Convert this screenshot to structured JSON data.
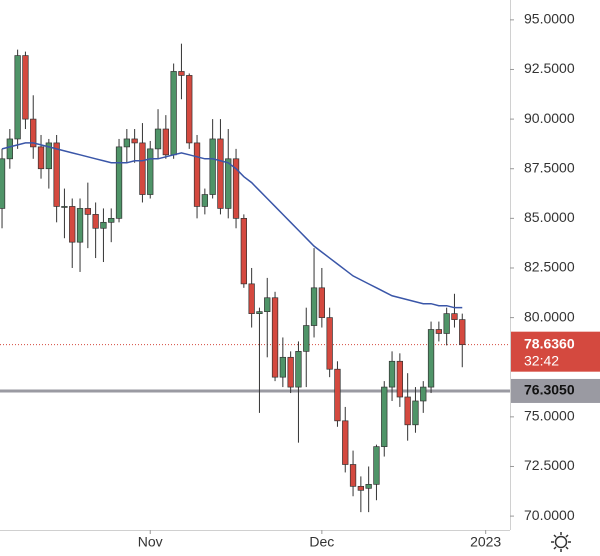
{
  "chart_data": {
    "type": "candlestick",
    "up_color": "#4f9468",
    "down_color": "#d4493f",
    "ylim": [
      69.3,
      96.0
    ],
    "yticks": [
      {
        "value": 70,
        "label": "70.0000"
      },
      {
        "value": 72.5,
        "label": "72.5000"
      },
      {
        "value": 75,
        "label": "75.0000"
      },
      {
        "value": 80,
        "label": "80.0000"
      },
      {
        "value": 82.5,
        "label": "82.5000"
      },
      {
        "value": 85,
        "label": "85.0000"
      },
      {
        "value": 87.5,
        "label": "87.5000"
      },
      {
        "value": 90,
        "label": "90.0000"
      },
      {
        "value": 92.5,
        "label": "92.5000"
      },
      {
        "value": 95,
        "label": "95.0000"
      }
    ],
    "xlim": [
      -0.26,
      65.12
    ],
    "xticks": [
      {
        "value": 19,
        "label": "Nov"
      },
      {
        "value": 41,
        "label": "Dec"
      },
      {
        "value": 62,
        "label": "2023"
      }
    ],
    "open": [
      85.5,
      88.0,
      89.0,
      93.2,
      90.0,
      88.6,
      87.5,
      88.8,
      85.6,
      85.6,
      83.8,
      85.5,
      85.2,
      84.5,
      84.8,
      85.0,
      88.6,
      89.0,
      88.8,
      86.2,
      88.5,
      89.5,
      88.2,
      92.4,
      92.2,
      88.8,
      85.6,
      86.2,
      89.0,
      85.5,
      88.0,
      85.0,
      81.7,
      80.2,
      80.3,
      81.0,
      77.0,
      78.0,
      76.5,
      78.3,
      79.6,
      81.5,
      80.0,
      77.4,
      74.8,
      72.6,
      71.5,
      71.4,
      71.6,
      73.5,
      76.5,
      77.8,
      76.0,
      74.6,
      75.8,
      76.5,
      79.4,
      79.2,
      80.2,
      79.9
    ],
    "high": [
      88.5,
      89.5,
      93.5,
      93.4,
      91.2,
      89.2,
      89.0,
      89.2,
      86.5,
      86.0,
      86.0,
      86.8,
      85.8,
      85.5,
      85.5,
      89.0,
      89.5,
      89.5,
      89.8,
      88.9,
      90.5,
      90.2,
      92.8,
      93.8,
      92.3,
      89.2,
      86.5,
      90.0,
      90.0,
      89.5,
      88.5,
      85.2,
      82.5,
      80.5,
      82.0,
      81.3,
      79.0,
      78.3,
      78.8,
      80.5,
      83.5,
      82.5,
      80.5,
      77.8,
      75.5,
      73.3,
      72.0,
      72.5,
      73.6,
      76.8,
      78.3,
      78.2,
      77.2,
      76.5,
      76.8,
      79.8,
      79.8,
      80.5,
      81.2,
      80.2
    ],
    "low": [
      84.5,
      87.5,
      88.5,
      89.5,
      88.0,
      87.0,
      86.5,
      84.8,
      84.0,
      82.5,
      82.3,
      83.5,
      83.0,
      82.8,
      83.8,
      84.8,
      87.8,
      87.8,
      85.8,
      86.0,
      88.0,
      88.0,
      88.0,
      91.0,
      88.5,
      85.0,
      85.2,
      86.0,
      85.2,
      85.0,
      84.5,
      81.5,
      79.5,
      75.2,
      78.0,
      76.8,
      76.5,
      76.2,
      73.7,
      76.5,
      79.0,
      79.5,
      77.0,
      74.5,
      72.2,
      71.0,
      70.2,
      70.2,
      70.8,
      73.0,
      75.8,
      75.5,
      73.8,
      74.2,
      75.2,
      76.2,
      78.8,
      78.6,
      79.5,
      77.5
    ],
    "close": [
      88.0,
      89.0,
      93.2,
      90.0,
      88.6,
      87.5,
      88.8,
      85.6,
      85.6,
      83.8,
      85.5,
      85.2,
      84.5,
      84.8,
      85.0,
      88.6,
      89.0,
      88.8,
      86.2,
      88.5,
      89.5,
      88.2,
      92.4,
      92.2,
      88.8,
      85.6,
      86.2,
      89.0,
      85.5,
      88.0,
      85.0,
      81.7,
      80.2,
      80.3,
      81.0,
      77.0,
      78.0,
      76.5,
      78.3,
      79.6,
      81.5,
      80.0,
      77.4,
      74.8,
      72.6,
      71.5,
      71.3,
      71.6,
      73.5,
      76.5,
      77.8,
      76.0,
      74.6,
      75.8,
      76.5,
      79.4,
      79.2,
      80.2,
      79.9,
      78.636
    ],
    "ma": {
      "color": "#3a56a8",
      "values": [
        88.5,
        88.6,
        88.7,
        88.8,
        88.8,
        88.7,
        88.6,
        88.5,
        88.4,
        88.3,
        88.2,
        88.1,
        88.0,
        87.9,
        87.8,
        87.8,
        87.8,
        87.9,
        87.9,
        88.0,
        88.0,
        88.1,
        88.2,
        88.3,
        88.2,
        88.1,
        88.0,
        88.0,
        87.9,
        87.8,
        87.5,
        87.1,
        86.8,
        86.4,
        86.0,
        85.6,
        85.2,
        84.8,
        84.4,
        84.0,
        83.6,
        83.3,
        83.0,
        82.7,
        82.4,
        82.1,
        81.9,
        81.7,
        81.5,
        81.3,
        81.1,
        81.0,
        80.9,
        80.8,
        80.7,
        80.7,
        80.6,
        80.6,
        80.5,
        80.5
      ]
    },
    "level": {
      "value": 76.305,
      "label": "76.3050",
      "color": "#9a9aa2"
    },
    "last": {
      "value": 78.636,
      "label": "78.6360",
      "countdown": "32:42",
      "color": "#d4493f"
    }
  }
}
